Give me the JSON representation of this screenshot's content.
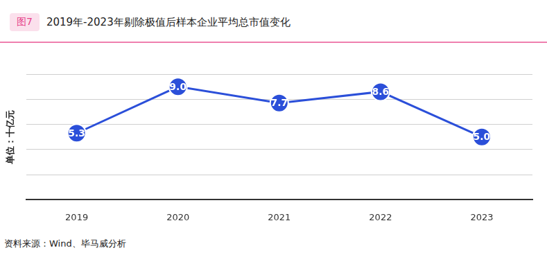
{
  "chart_data": {
    "type": "line",
    "figure_label": "图7",
    "title": "2019年-2023年剔除极值后样本企业平均总市值变化",
    "y_label": "单位：十亿元",
    "source": "资料来源：Wind、毕马威分析",
    "categories": [
      "2019",
      "2020",
      "2021",
      "2022",
      "2023"
    ],
    "values": [
      5.3,
      9.0,
      7.7,
      8.6,
      5.0
    ],
    "value_labels": [
      "5.3",
      "9.0",
      "7.7",
      "8.6",
      "5.0"
    ],
    "color": "#2b4fd9",
    "marker": "circle",
    "ylim": [
      0,
      10
    ],
    "yticks": [
      0,
      2,
      4,
      6,
      8,
      10
    ],
    "grid": true,
    "data_labels": true,
    "tick_labels": "x"
  }
}
